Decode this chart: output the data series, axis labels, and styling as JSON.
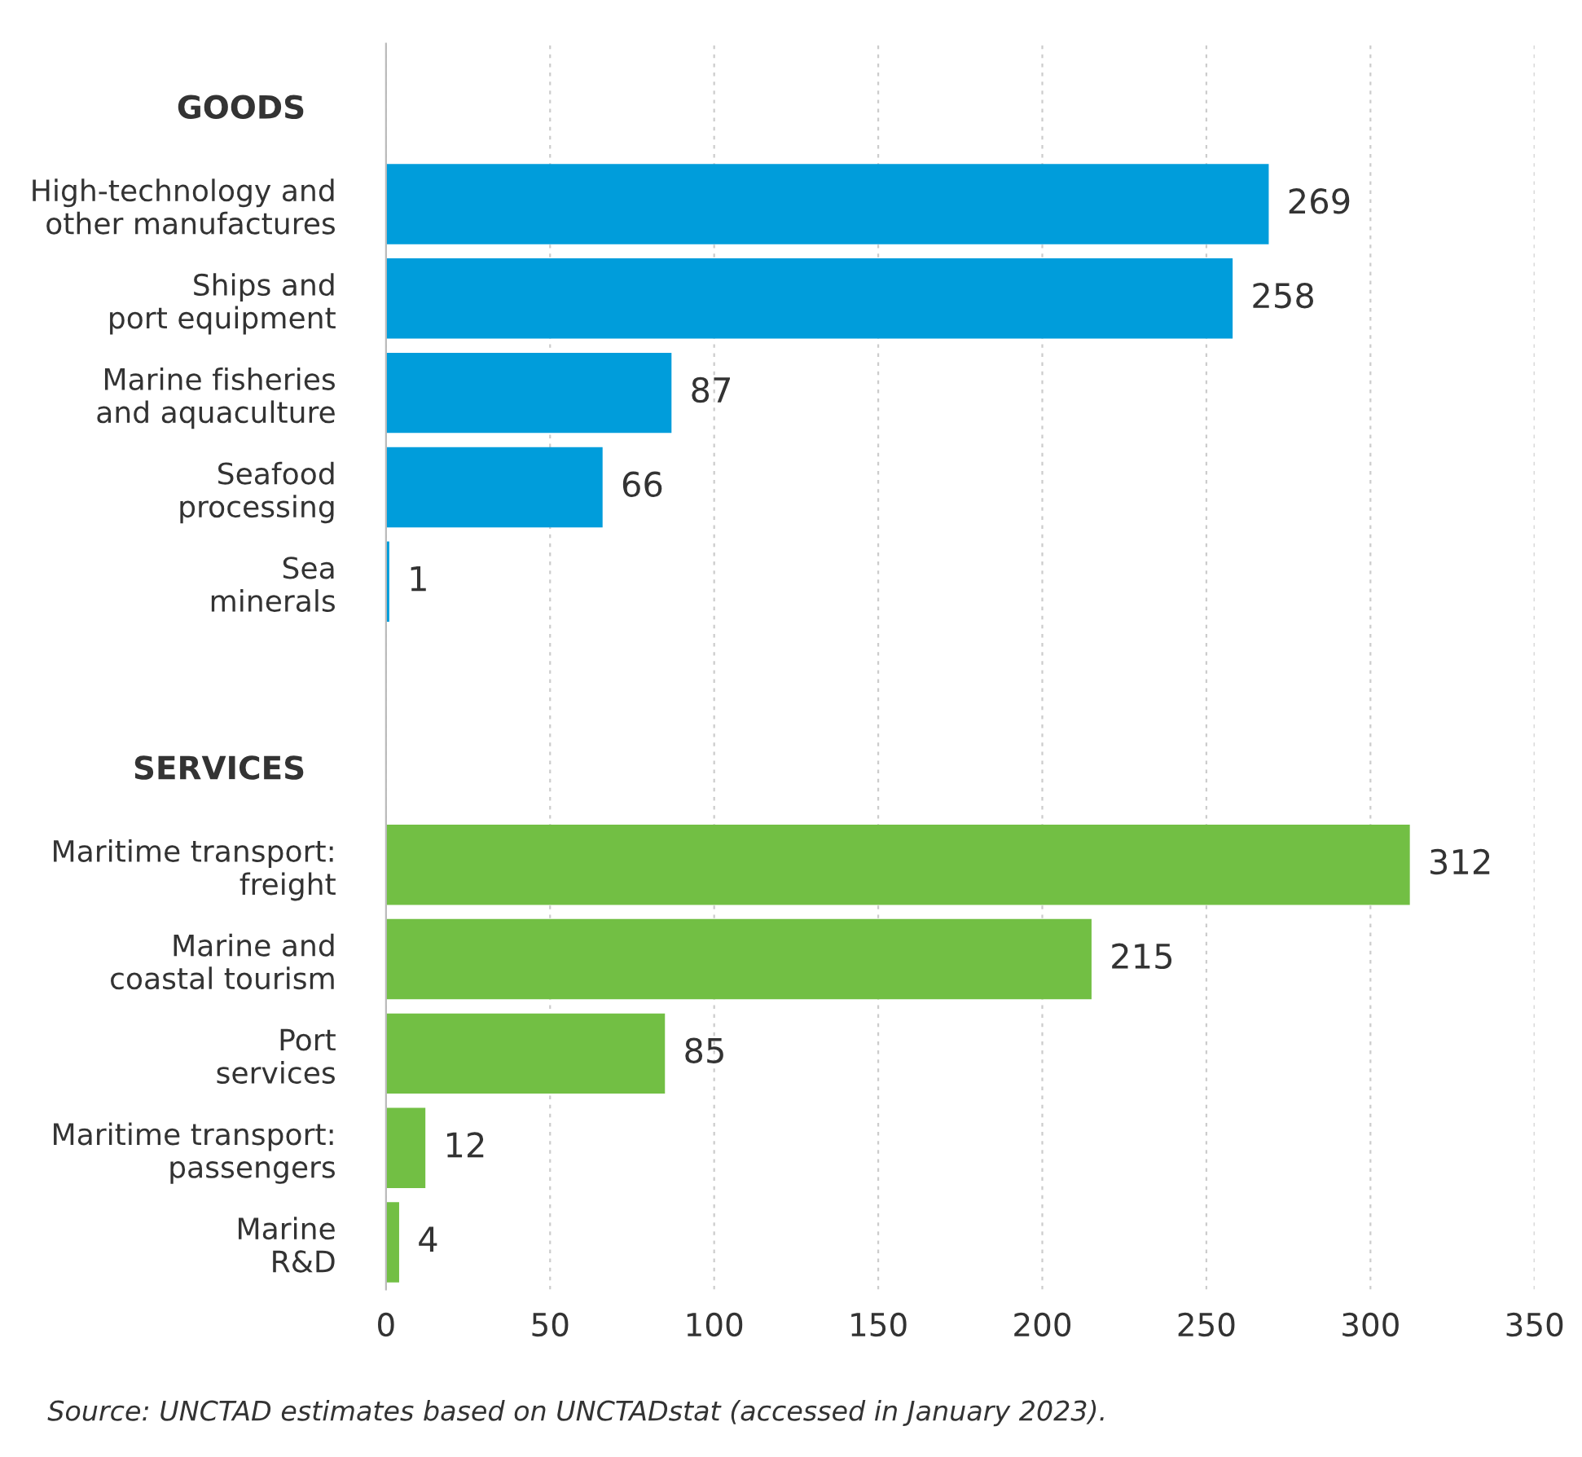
{
  "chart_data": {
    "type": "bar",
    "orientation": "horizontal",
    "categories": [
      null,
      "High-technology and\nother manufactures",
      "Ships and\nport equipment",
      "Marine fisheries\nand aquaculture",
      "Seafood\nprocessing",
      "Sea\nminerals",
      null,
      null,
      "Maritime transport:\nfreight",
      "Marine and\ncoastal tourism",
      "Port\nservices",
      "Maritime transport:\npassengers",
      "Marine\nR&D"
    ],
    "series": [
      {
        "name": "GOODS",
        "color": "#009ddb",
        "values": [
          null,
          269,
          258,
          87,
          66,
          1,
          null,
          null,
          null,
          null,
          null,
          null,
          null
        ]
      },
      {
        "name": "SERVICES",
        "color": "#72bf44",
        "values": [
          null,
          null,
          null,
          null,
          null,
          null,
          null,
          null,
          312,
          215,
          85,
          12,
          4
        ]
      }
    ],
    "xlim": [
      0,
      350
    ],
    "xticks": [
      0,
      50,
      100,
      150,
      200,
      250,
      300,
      350
    ],
    "grid": "x",
    "data_labels": true,
    "legend": false,
    "annotations": [
      "Source: UNCTAD estimates based on UNCTADstat (accessed in January 2023)."
    ]
  }
}
